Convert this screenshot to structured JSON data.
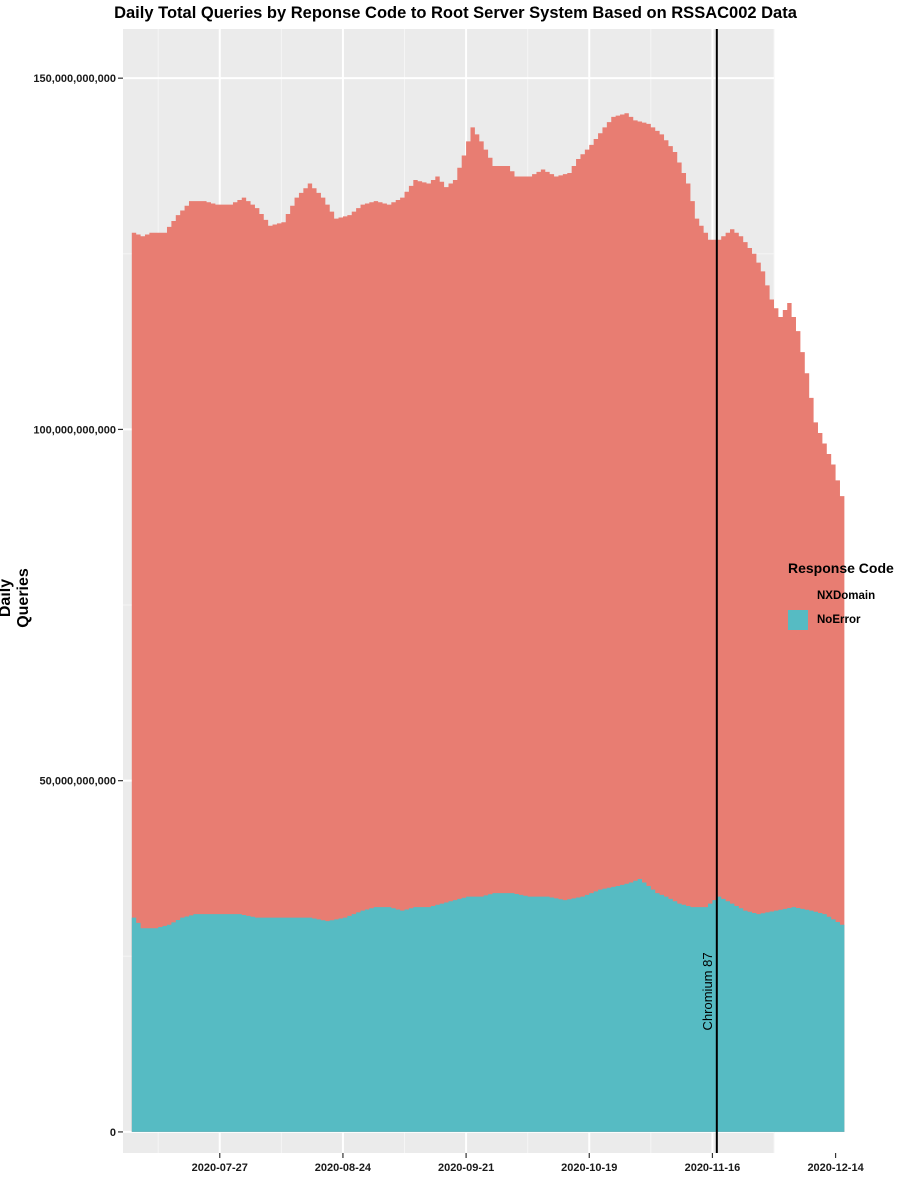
{
  "chart_data": {
    "type": "area",
    "title": "Daily Total Queries by Reponse Code to Root Server System Based on RSSAC002 Data",
    "xlabel": "",
    "ylabel": "Daily Queries",
    "ylim": [
      -3000000000,
      157000000000
    ],
    "y_ticks": [
      0,
      50000000000,
      100000000000,
      150000000000
    ],
    "y_tick_labels": [
      "0",
      "50,000,000,000",
      "100,000,000,000",
      "150,000,000,000"
    ],
    "x_range_days": [
      -22,
      126
    ],
    "x_ticks_days": [
      0,
      28,
      56,
      84,
      112,
      140
    ],
    "x_tick_labels": [
      "2020-07-27",
      "2020-08-24",
      "2020-09-21",
      "2020-10-19",
      "2020-11-16",
      "2020-12-14"
    ],
    "x_origin_date": "2020-07-27",
    "legend_title": "Response Code",
    "stacking": "stacked",
    "annotation": {
      "x_day": 113,
      "label": "Chromium 87"
    },
    "series": [
      {
        "name": "NXDomain",
        "color": "#E87D72",
        "total_keypoints": [
          [
            -20,
            128.0
          ],
          [
            -18,
            127.5
          ],
          [
            -16,
            128.0
          ],
          [
            -13,
            128.0
          ],
          [
            -10,
            130.5
          ],
          [
            -7,
            132.5
          ],
          [
            -4,
            132.5
          ],
          [
            -1,
            132.0
          ],
          [
            2,
            132.0
          ],
          [
            5,
            133.0
          ],
          [
            8,
            131.5
          ],
          [
            11,
            129.0
          ],
          [
            14,
            129.5
          ],
          [
            17,
            133.0
          ],
          [
            20,
            135.0
          ],
          [
            23,
            133.0
          ],
          [
            26,
            130.0
          ],
          [
            29,
            130.5
          ],
          [
            32,
            132.0
          ],
          [
            35,
            132.5
          ],
          [
            38,
            132.0
          ],
          [
            41,
            133.0
          ],
          [
            44,
            135.5
          ],
          [
            47,
            135.0
          ],
          [
            49,
            136.0
          ],
          [
            51,
            134.5
          ],
          [
            53,
            135.5
          ],
          [
            55,
            139.0
          ],
          [
            57,
            143.0
          ],
          [
            59,
            141.0
          ],
          [
            62,
            137.5
          ],
          [
            65,
            137.5
          ],
          [
            67,
            136.0
          ],
          [
            70,
            136.0
          ],
          [
            73,
            137.0
          ],
          [
            76,
            136.0
          ],
          [
            79,
            136.5
          ],
          [
            81,
            138.5
          ],
          [
            84,
            140.5
          ],
          [
            87,
            143.0
          ],
          [
            89,
            144.5
          ],
          [
            92,
            145.0
          ],
          [
            94,
            144.0
          ],
          [
            97,
            143.5
          ],
          [
            100,
            142.0
          ],
          [
            103,
            139.5
          ],
          [
            106,
            135.0
          ],
          [
            108,
            130.0
          ],
          [
            111,
            127.0
          ],
          [
            113,
            127.0
          ],
          [
            116,
            128.5
          ],
          [
            118,
            127.5
          ],
          [
            121,
            125.0
          ],
          [
            123,
            122.5
          ],
          [
            125,
            118.5
          ],
          [
            127,
            116.0
          ],
          [
            129,
            118.0
          ],
          [
            131,
            114.0
          ],
          [
            133,
            108.0
          ],
          [
            135,
            101.0
          ],
          [
            137,
            98.0
          ],
          [
            139,
            95.0
          ],
          [
            141,
            90.5
          ]
        ]
      },
      {
        "name": "NoError",
        "color": "#56BBC3",
        "total_keypoints": [
          [
            -20,
            30.5
          ],
          [
            -18,
            29.0
          ],
          [
            -15,
            29.0
          ],
          [
            -12,
            29.5
          ],
          [
            -9,
            30.5
          ],
          [
            -6,
            31.0
          ],
          [
            -3,
            31.0
          ],
          [
            0,
            31.0
          ],
          [
            4,
            31.0
          ],
          [
            8,
            30.5
          ],
          [
            12,
            30.5
          ],
          [
            16,
            30.5
          ],
          [
            20,
            30.5
          ],
          [
            24,
            30.0
          ],
          [
            28,
            30.5
          ],
          [
            32,
            31.5
          ],
          [
            35,
            32.0
          ],
          [
            38,
            32.0
          ],
          [
            41,
            31.5
          ],
          [
            44,
            32.0
          ],
          [
            47,
            32.0
          ],
          [
            50,
            32.5
          ],
          [
            53,
            33.0
          ],
          [
            56,
            33.5
          ],
          [
            59,
            33.5
          ],
          [
            62,
            34.0
          ],
          [
            66,
            34.0
          ],
          [
            70,
            33.5
          ],
          [
            74,
            33.5
          ],
          [
            78,
            33.0
          ],
          [
            82,
            33.5
          ],
          [
            86,
            34.5
          ],
          [
            90,
            35.0
          ],
          [
            93,
            35.5
          ],
          [
            95,
            36.0
          ],
          [
            97,
            35.0
          ],
          [
            99,
            34.0
          ],
          [
            101,
            33.5
          ],
          [
            104,
            32.5
          ],
          [
            107,
            32.0
          ],
          [
            110,
            32.0
          ],
          [
            113,
            33.5
          ],
          [
            116,
            32.5
          ],
          [
            119,
            31.5
          ],
          [
            122,
            31.0
          ],
          [
            126,
            31.5
          ],
          [
            130,
            32.0
          ],
          [
            134,
            31.5
          ],
          [
            137,
            31.0
          ],
          [
            141,
            29.5
          ]
        ]
      }
    ]
  }
}
